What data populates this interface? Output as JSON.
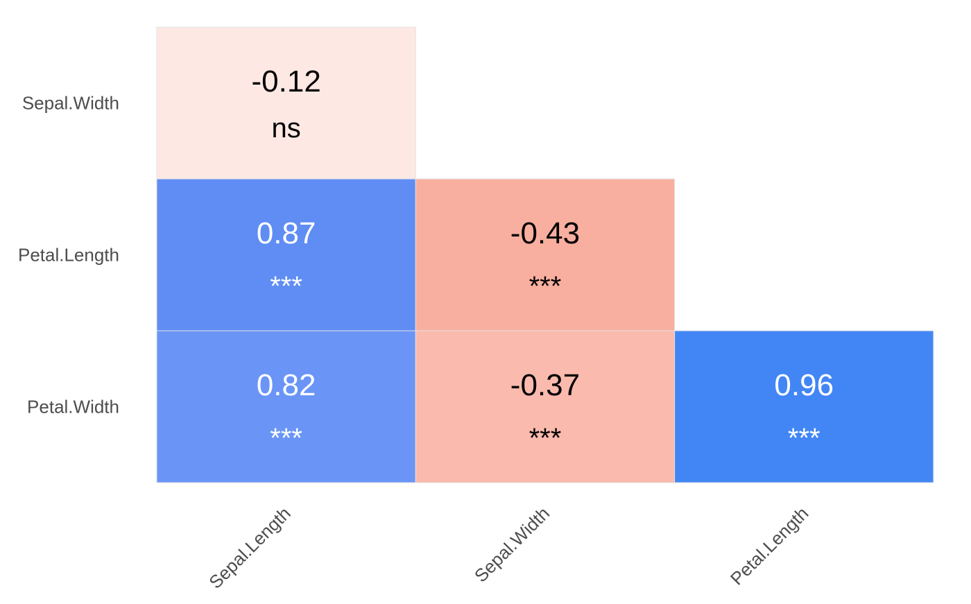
{
  "chart_data": {
    "type": "heatmap",
    "title": "",
    "xlabel": "",
    "ylabel": "",
    "x_categories": [
      "Sepal.Length",
      "Sepal.Width",
      "Petal.Length"
    ],
    "y_categories": [
      "Sepal.Width",
      "Petal.Length",
      "Petal.Width"
    ],
    "cells": [
      {
        "x": "Sepal.Length",
        "y": "Sepal.Width",
        "value": -0.12,
        "label": "-0.12",
        "signif": "ns",
        "color": "#FDE8E3",
        "text_color": "#000000"
      },
      {
        "x": "Sepal.Length",
        "y": "Petal.Length",
        "value": 0.87,
        "label": "0.87",
        "signif": "***",
        "color": "#5F8DF4",
        "text_color": "#FFFFFF"
      },
      {
        "x": "Sepal.Width",
        "y": "Petal.Length",
        "value": -0.43,
        "label": "-0.43",
        "signif": "***",
        "color": "#F9AF9F",
        "text_color": "#000000"
      },
      {
        "x": "Sepal.Length",
        "y": "Petal.Width",
        "value": 0.82,
        "label": "0.82",
        "signif": "***",
        "color": "#6A95F6",
        "text_color": "#FFFFFF"
      },
      {
        "x": "Sepal.Width",
        "y": "Petal.Width",
        "value": -0.37,
        "label": "-0.37",
        "signif": "***",
        "color": "#FABAAD",
        "text_color": "#000000"
      },
      {
        "x": "Petal.Length",
        "y": "Petal.Width",
        "value": 0.96,
        "label": "0.96",
        "signif": "***",
        "color": "#4286F5",
        "text_color": "#FFFFFF"
      }
    ],
    "axis_text_color": "#4D4D4D",
    "grid": false,
    "legend": "none"
  }
}
